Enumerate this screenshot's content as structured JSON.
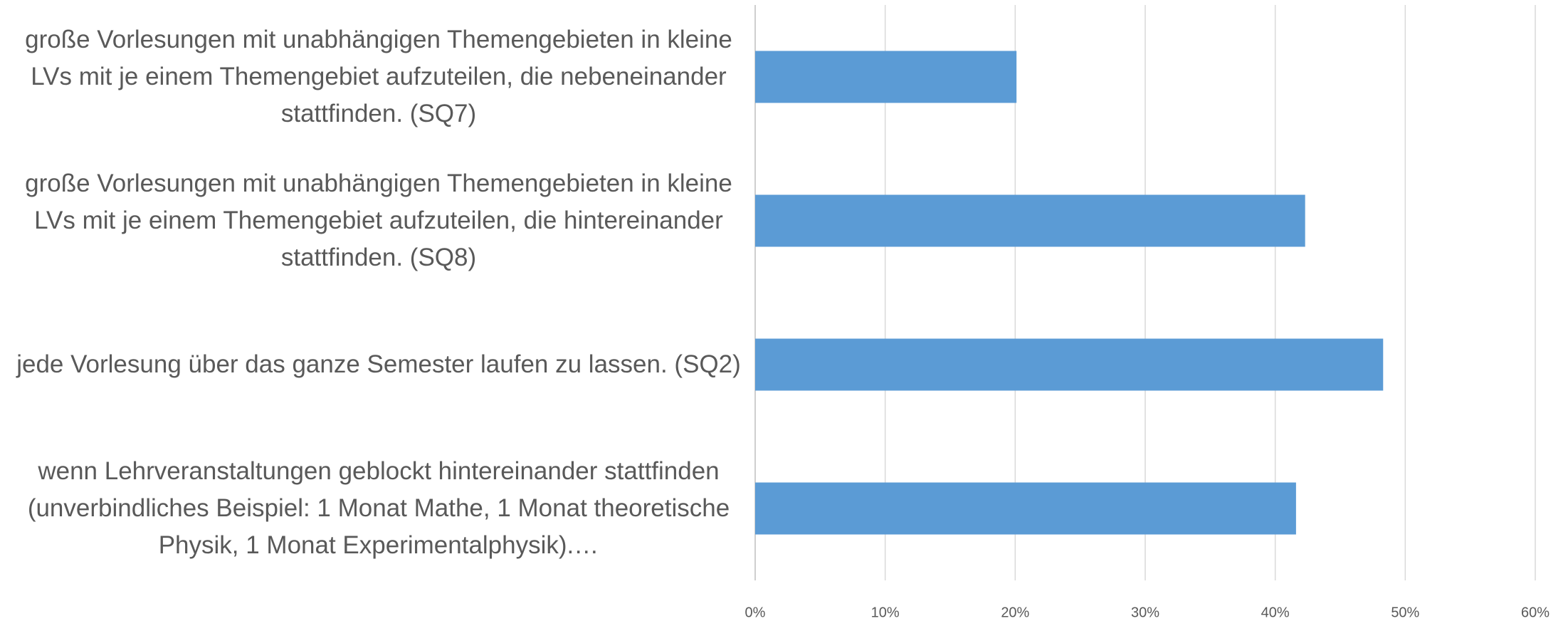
{
  "chart_data": {
    "type": "bar",
    "orientation": "horizontal",
    "categories": [
      "große Vorlesungen mit unabhängigen Themengebieten in kleine LVs mit je einem Themengebiet aufzuteilen, die nebeneinander stattfinden. (SQ7)",
      "große Vorlesungen mit unabhängigen Themengebieten in kleine LVs mit je einem Themengebiet aufzuteilen, die hintereinander stattfinden. (SQ8)",
      "jede Vorlesung über das ganze Semester laufen zu lassen. (SQ2)",
      "wenn Lehrveranstaltungen geblockt hintereinander stattfinden (unverbindliches Beispiel: 1 Monat Mathe, 1 Monat theoretische Physik, 1 Monat Experimentalphysik).…"
    ],
    "values": [
      20.1,
      42.3,
      48.3,
      41.6
    ],
    "color": "#5b9bd5",
    "xlim": [
      0,
      60
    ],
    "xticks": [
      {
        "value": 0,
        "label": "0%"
      },
      {
        "value": 10,
        "label": "10%"
      },
      {
        "value": 20,
        "label": "20%"
      },
      {
        "value": 30,
        "label": "30%"
      },
      {
        "value": 40,
        "label": "40%"
      },
      {
        "value": 50,
        "label": "50%"
      },
      {
        "value": 60,
        "label": "60%"
      }
    ],
    "grid": true
  }
}
